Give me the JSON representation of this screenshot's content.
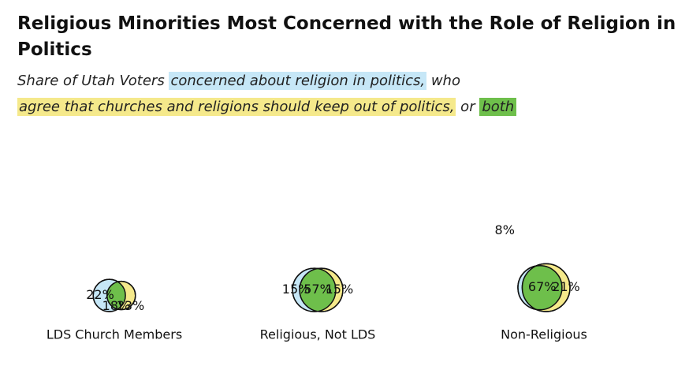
{
  "title": "Religious Minorities Most Concerned with the Role of Religion in Politics",
  "subtitle": {
    "prefix": "Share of Utah Voters ",
    "concerned": "concerned about religion in politics,",
    "middle": " who ",
    "agree": "agree that churches and religions should keep out of politics,",
    "or": " or ",
    "both": "both"
  },
  "colors": {
    "concerned": "#c6e7f7",
    "agree": "#f5e98b",
    "both": "#6ebf4b"
  },
  "chart_data": {
    "type": "venn",
    "sets": [
      "concerned about religion in politics",
      "agree that churches and religions should keep out of politics",
      "both"
    ],
    "groups": [
      {
        "name": "LDS Church Members",
        "concerned_only": 22,
        "both": 18,
        "agree_only": 13,
        "labels": {
          "concerned_only": "22%",
          "both": "18%",
          "agree_only": "13%"
        }
      },
      {
        "name": "Religious, Not LDS",
        "concerned_only": 15,
        "both": 57,
        "agree_only": 15,
        "labels": {
          "concerned_only": "15%",
          "both": "57%",
          "agree_only": "15%"
        }
      },
      {
        "name": "Non-Religious",
        "concerned_only": 8,
        "both": 67,
        "agree_only": 21,
        "labels": {
          "concerned_only": "8%",
          "both": "67%",
          "agree_only": "21%"
        }
      }
    ]
  }
}
